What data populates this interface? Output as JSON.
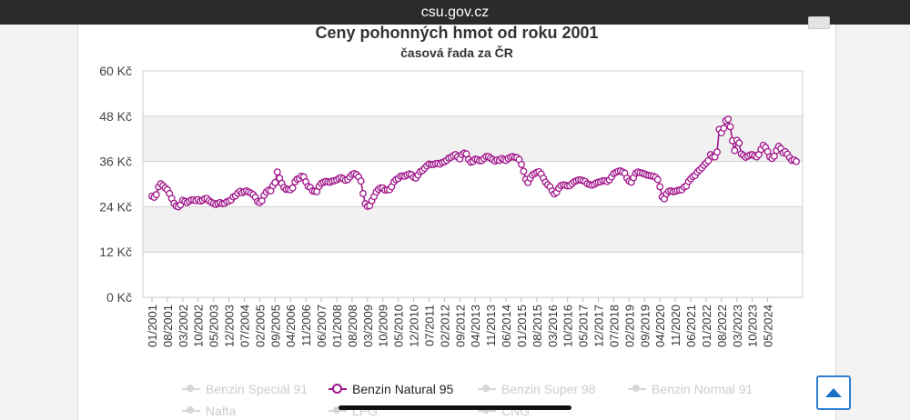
{
  "browser": {
    "url": "csu.gov.cz"
  },
  "chart_data": {
    "type": "line",
    "title": "Ceny pohonných hmot od roku 2001",
    "subtitle": "časová řada za ČR",
    "ylim": [
      0,
      60
    ],
    "yticks": [
      0,
      12,
      24,
      36,
      48,
      60
    ],
    "ytick_labels": [
      "0 Kč",
      "12 Kč",
      "24 Kč",
      "36 Kč",
      "48 Kč",
      "60 Kč"
    ],
    "xtick_labels": [
      "01/2001",
      "08/2001",
      "03/2002",
      "10/2002",
      "05/2003",
      "12/2003",
      "07/2004",
      "02/2005",
      "09/2005",
      "04/2006",
      "11/2006",
      "06/2007",
      "01/2008",
      "08/2008",
      "03/2009",
      "10/2009",
      "05/2010",
      "12/2010",
      "07/2011",
      "02/2012",
      "09/2012",
      "04/2013",
      "11/2013",
      "06/2014",
      "01/2015",
      "08/2015",
      "03/2016",
      "10/2016",
      "05/2017",
      "12/2017",
      "07/2018",
      "02/2019",
      "09/2019",
      "04/2020",
      "11/2020",
      "06/2021",
      "01/2022",
      "08/2022",
      "03/2023",
      "10/2023",
      "05/2024"
    ],
    "grid": true,
    "legend_position": "bottom",
    "series": [
      {
        "name": "Benzin Natural 95",
        "color": "#a0168b",
        "values": [
          26.8,
          26.5,
          27.2,
          29.3,
          30.1,
          29.6,
          29.0,
          28.5,
          27.5,
          26.2,
          24.9,
          24.2,
          24.0,
          24.5,
          25.7,
          25.4,
          25.1,
          25.5,
          25.8,
          25.8,
          25.6,
          25.9,
          25.5,
          25.7,
          26.1,
          26.2,
          25.6,
          25.2,
          24.9,
          24.6,
          24.9,
          25.1,
          24.8,
          24.9,
          25.3,
          25.5,
          25.8,
          26.6,
          26.9,
          27.6,
          28.1,
          27.7,
          28.0,
          28.2,
          27.9,
          27.6,
          27.2,
          26.5,
          25.4,
          25.1,
          25.6,
          27.0,
          27.9,
          28.4,
          28.2,
          29.6,
          30.4,
          33.2,
          31.6,
          30.2,
          29.1,
          28.6,
          28.6,
          28.5,
          29.0,
          30.6,
          31.3,
          31.5,
          32.1,
          31.9,
          30.6,
          29.4,
          29.1,
          28.2,
          28.1,
          28.0,
          29.4,
          30.2,
          30.5,
          30.7,
          30.6,
          30.5,
          30.8,
          30.9,
          31.1,
          31.5,
          31.7,
          31.4,
          31.0,
          31.2,
          31.9,
          32.5,
          32.8,
          32.5,
          31.9,
          30.8,
          27.5,
          24.8,
          24.1,
          24.3,
          25.6,
          26.7,
          27.9,
          28.6,
          29.0,
          29.0,
          28.4,
          28.5,
          28.5,
          29.3,
          30.6,
          31.2,
          31.5,
          32.1,
          32.2,
          32.1,
          32.4,
          32.7,
          32.5,
          31.8,
          31.6,
          32.4,
          33.3,
          33.6,
          34.2,
          34.8,
          35.3,
          35.2,
          35.2,
          35.4,
          35.5,
          35.3,
          35.7,
          35.9,
          36.3,
          36.9,
          37.1,
          37.5,
          37.8,
          37.2,
          36.7,
          37.8,
          38.2,
          38.0,
          36.5,
          35.8,
          36.0,
          36.6,
          36.5,
          36.2,
          36.3,
          36.8,
          37.3,
          37.3,
          36.9,
          36.5,
          36.1,
          36.4,
          36.3,
          36.8,
          36.5,
          36.3,
          36.8,
          37.1,
          37.3,
          37.1,
          37.0,
          36.5,
          35.2,
          33.4,
          31.3,
          30.4,
          31.6,
          32.4,
          32.8,
          33.1,
          33.3,
          32.7,
          31.6,
          30.5,
          29.8,
          29.3,
          28.2,
          27.4,
          27.8,
          28.9,
          29.6,
          29.8,
          29.7,
          29.5,
          29.6,
          30.1,
          30.6,
          30.9,
          31.1,
          31.1,
          30.9,
          30.7,
          30.1,
          29.9,
          29.7,
          29.9,
          30.3,
          30.5,
          30.6,
          30.9,
          30.9,
          30.7,
          31.1,
          31.9,
          32.8,
          33.1,
          33.4,
          33.5,
          33.2,
          32.9,
          31.6,
          30.8,
          30.5,
          31.7,
          32.9,
          33.2,
          33.0,
          32.9,
          32.7,
          32.4,
          32.3,
          32.2,
          32.1,
          31.8,
          31.2,
          29.3,
          26.6,
          26.1,
          27.4,
          28.1,
          28.2,
          28.0,
          28.1,
          28.3,
          28.4,
          28.5,
          29.2,
          29.5,
          30.7,
          31.4,
          32.0,
          32.3,
          33.2,
          33.7,
          34.3,
          35.0,
          35.6,
          36.2,
          37.8,
          37.2,
          37.2,
          38.5,
          44.5,
          43.6,
          44.8,
          46.8,
          47.2,
          45.2,
          41.5,
          38.9,
          41.6,
          40.9,
          38.0,
          37.6,
          37.1,
          37.4,
          37.7,
          37.8,
          37.5,
          37.2,
          37.8,
          39.2,
          40.3,
          39.7,
          38.6,
          37.2,
          36.8,
          37.4,
          38.9,
          40.0,
          39.4,
          38.3,
          38.6,
          37.9,
          37.0,
          36.3,
          36.4,
          36.0
        ]
      }
    ]
  },
  "legend": {
    "items": [
      {
        "label": "Benzin Speciál 91",
        "active": false
      },
      {
        "label": "Benzin Natural 95",
        "active": true
      },
      {
        "label": "Benzin Super 98",
        "active": false
      },
      {
        "label": "Benzin Normal 91",
        "active": false
      },
      {
        "label": "Nafta",
        "active": false
      },
      {
        "label": "LPG",
        "active": false
      },
      {
        "label": "CNG",
        "active": false
      }
    ]
  },
  "controls": {
    "scroll_top_icon": "arrow-up-icon"
  }
}
